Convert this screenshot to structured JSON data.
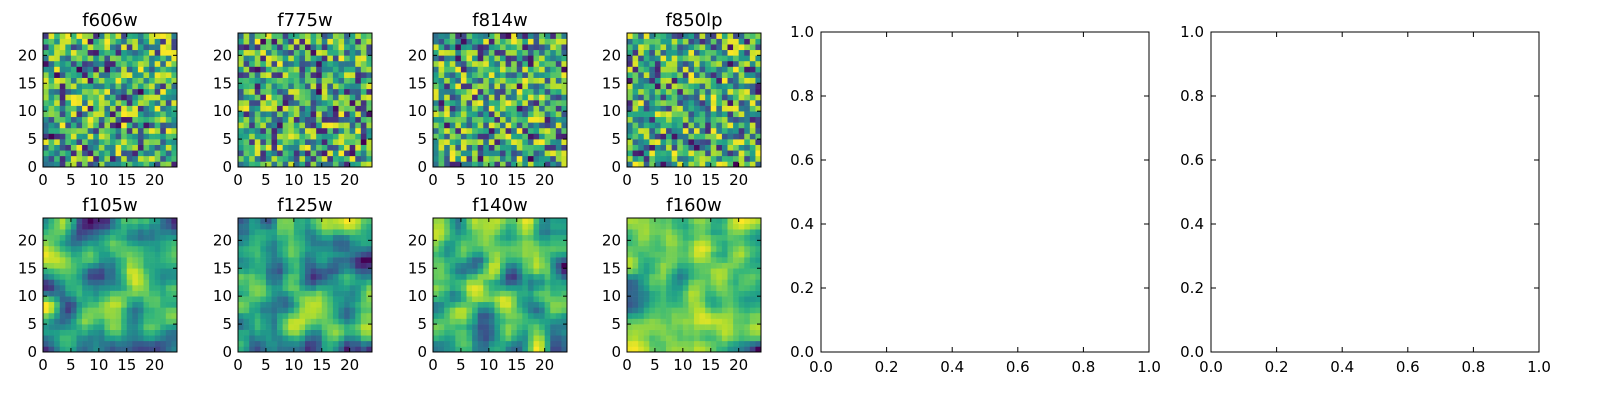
{
  "chart_data": [
    {
      "type": "heatmap",
      "title": "f606w",
      "grid_size": 24,
      "xlim": [
        0,
        24
      ],
      "ylim": [
        0,
        24
      ],
      "xticks": [
        0,
        5,
        10,
        15,
        20
      ],
      "yticks": [
        0,
        5,
        10,
        15,
        20
      ],
      "colormap": "viridis",
      "seed": 11,
      "smoothness": 0
    },
    {
      "type": "heatmap",
      "title": "f775w",
      "grid_size": 24,
      "xlim": [
        0,
        24
      ],
      "ylim": [
        0,
        24
      ],
      "xticks": [
        0,
        5,
        10,
        15,
        20
      ],
      "yticks": [
        0,
        5,
        10,
        15,
        20
      ],
      "colormap": "viridis",
      "seed": 23,
      "smoothness": 0
    },
    {
      "type": "heatmap",
      "title": "f814w",
      "grid_size": 24,
      "xlim": [
        0,
        24
      ],
      "ylim": [
        0,
        24
      ],
      "xticks": [
        0,
        5,
        10,
        15,
        20
      ],
      "yticks": [
        0,
        5,
        10,
        15,
        20
      ],
      "colormap": "viridis",
      "seed": 37,
      "smoothness": 0
    },
    {
      "type": "heatmap",
      "title": "f850lp",
      "grid_size": 24,
      "xlim": [
        0,
        24
      ],
      "ylim": [
        0,
        24
      ],
      "xticks": [
        0,
        5,
        10,
        15,
        20
      ],
      "yticks": [
        0,
        5,
        10,
        15,
        20
      ],
      "colormap": "viridis",
      "seed": 41,
      "smoothness": 0
    },
    {
      "type": "heatmap",
      "title": "f105w",
      "grid_size": 24,
      "xlim": [
        0,
        24
      ],
      "ylim": [
        0,
        24
      ],
      "xticks": [
        0,
        5,
        10,
        15,
        20
      ],
      "yticks": [
        0,
        5,
        10,
        15,
        20
      ],
      "colormap": "viridis",
      "seed": 53,
      "smoothness": 2
    },
    {
      "type": "heatmap",
      "title": "f125w",
      "grid_size": 24,
      "xlim": [
        0,
        24
      ],
      "ylim": [
        0,
        24
      ],
      "xticks": [
        0,
        5,
        10,
        15,
        20
      ],
      "yticks": [
        0,
        5,
        10,
        15,
        20
      ],
      "colormap": "viridis",
      "seed": 67,
      "smoothness": 2
    },
    {
      "type": "heatmap",
      "title": "f140w",
      "grid_size": 24,
      "xlim": [
        0,
        24
      ],
      "ylim": [
        0,
        24
      ],
      "xticks": [
        0,
        5,
        10,
        15,
        20
      ],
      "yticks": [
        0,
        5,
        10,
        15,
        20
      ],
      "colormap": "viridis",
      "seed": 79,
      "smoothness": 2
    },
    {
      "type": "heatmap",
      "title": "f160w",
      "grid_size": 24,
      "xlim": [
        0,
        24
      ],
      "ylim": [
        0,
        24
      ],
      "xticks": [
        0,
        5,
        10,
        15,
        20
      ],
      "yticks": [
        0,
        5,
        10,
        15,
        20
      ],
      "colormap": "viridis",
      "seed": 83,
      "smoothness": 2
    },
    {
      "type": "line",
      "title": "",
      "xlabel": "",
      "ylabel": "",
      "series": [],
      "xlim": [
        0.0,
        1.0
      ],
      "ylim": [
        0.0,
        1.0
      ],
      "xticks": [
        "0.0",
        "0.2",
        "0.4",
        "0.6",
        "0.8",
        "1.0"
      ],
      "yticks": [
        "0.0",
        "0.2",
        "0.4",
        "0.6",
        "0.8",
        "1.0"
      ],
      "grid": false
    },
    {
      "type": "line",
      "title": "",
      "xlabel": "",
      "ylabel": "",
      "series": [],
      "xlim": [
        0.0,
        1.0
      ],
      "ylim": [
        0.0,
        1.0
      ],
      "xticks": [
        "0.0",
        "0.2",
        "0.4",
        "0.6",
        "0.8",
        "1.0"
      ],
      "yticks": [
        "0.0",
        "0.2",
        "0.4",
        "0.6",
        "0.8",
        "1.0"
      ],
      "grid": false
    }
  ]
}
